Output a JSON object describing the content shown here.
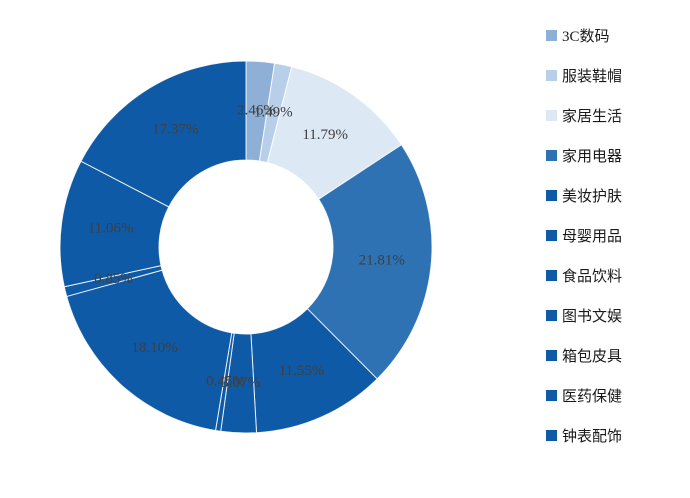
{
  "chart_data": {
    "type": "pie",
    "shape": "donut",
    "title": "",
    "legend_position": "right",
    "direction": "clockwise",
    "start_angle_deg": 0,
    "inner_radius_ratio": 0.47,
    "grid": false,
    "categories": [
      "3C数码",
      "服装鞋帽",
      "家居生活",
      "家用电器",
      "美妆护肤",
      "母婴用品",
      "食品饮料",
      "图书文娱",
      "箱包皮具",
      "医药保健",
      "钟表配饰"
    ],
    "values": [
      2.46,
      1.49,
      11.79,
      21.81,
      11.55,
      3.07,
      0.45,
      18.1,
      0.85,
      11.06,
      17.37
    ],
    "data_labels": [
      "2.46%",
      "1.49%",
      "11.79%",
      "21.81%",
      "11.55%",
      "3.07%",
      "0.45%",
      "18.10%",
      "0.85%",
      "11.06%",
      "17.37%"
    ],
    "colors": [
      "#8EB0D6",
      "#B8CFE9",
      "#DCE9F5",
      "#2E72B4",
      "#0F5AA6",
      "#0F5AA6",
      "#0F5AA6",
      "#0F5AA6",
      "#0F5AA6",
      "#0F5AA6",
      "#0F5AA6"
    ],
    "label_color": "#3F3F3F",
    "slice_border_color": "#FFFFFF"
  }
}
